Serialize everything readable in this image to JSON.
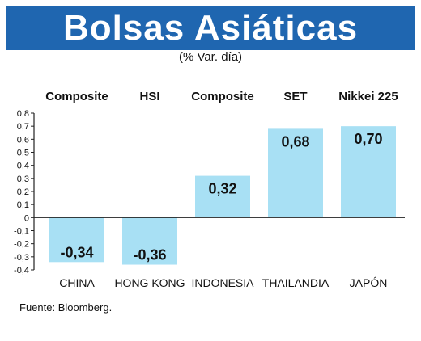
{
  "title": "Bolsas Asiáticas",
  "subtitle": "(% Var. día)",
  "source": "Fuente: Bloomberg.",
  "colors": {
    "header_bg": "#1f66b0",
    "bar": "#a8e0f4",
    "axis": "#222222"
  },
  "chart_data": {
    "type": "bar",
    "categories": [
      "CHINA",
      "HONG KONG",
      "INDONESIA",
      "THAILANDIA",
      "JAPÓN"
    ],
    "indices": [
      "Composite",
      "HSI",
      "Composite",
      "SET",
      "Nikkei 225"
    ],
    "values": [
      -0.34,
      -0.36,
      0.32,
      0.68,
      0.7
    ],
    "value_labels": [
      "-0,34",
      "-0,36",
      "0,32",
      "0,68",
      "0,70"
    ],
    "ylim": [
      -0.4,
      0.8
    ],
    "yticks": [
      0.8,
      0.7,
      0.6,
      0.5,
      0.4,
      0.3,
      0.2,
      0.1,
      0,
      -0.1,
      -0.2,
      -0.3,
      -0.4
    ],
    "ytick_labels": [
      "0,8",
      "0,7",
      "0,6",
      "0,5",
      "0,4",
      "0,3",
      "0,2",
      "0,1",
      "0",
      "-0,1",
      "-0,2",
      "-0,3",
      "-0,4"
    ],
    "grid": false
  }
}
